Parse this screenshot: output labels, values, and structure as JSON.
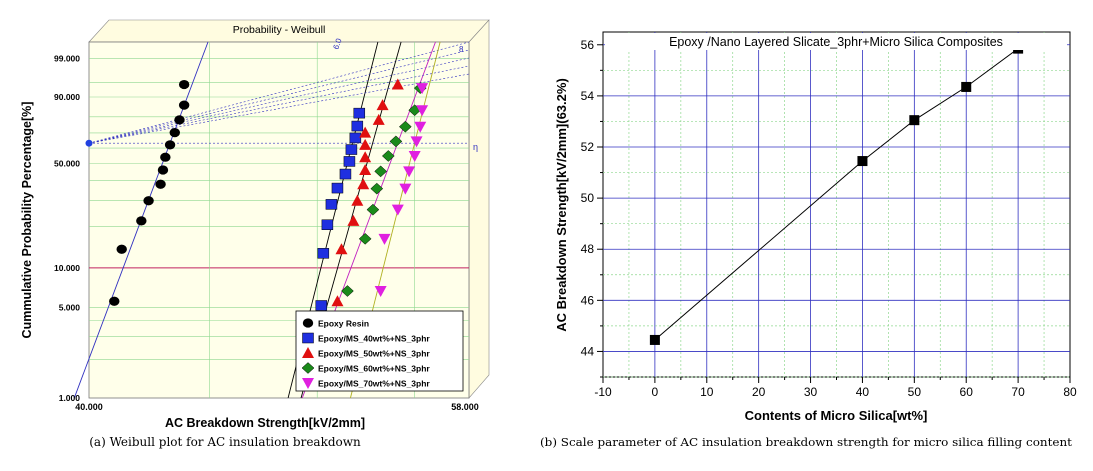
{
  "colors": {
    "epoxy_resin": "#000000",
    "ms40": "#1f2fe0",
    "ms50": "#e01010",
    "ms60": "#1a8a1a",
    "ms70": "#e020e0",
    "weibull_title": "#c01010",
    "grid_green": "#8fd88f",
    "grid_blue": "#3030c0",
    "plot_yellow_bg": "#ffffe6"
  },
  "chart_data": [
    {
      "type": "scatter",
      "title": "Probability - Weibull",
      "xlabel": "AC Breakdown Strength[kV/2mm]",
      "ylabel": "Cummulative Probability Percentage[%]",
      "xlim": [
        40.0,
        58.0
      ],
      "x_scale": "log",
      "y_scale": "weibull",
      "x_tick_labels": [
        "40.000",
        "58.000"
      ],
      "y_ticks": [
        1,
        5,
        10,
        50,
        90,
        99
      ],
      "y_tick_labels": [
        "1.000",
        "5.000",
        "10.000",
        "50.000",
        "90.000",
        "99.000"
      ],
      "annotations": [
        "6.0",
        "8",
        "η"
      ],
      "legend_position": "bottom-right",
      "series": [
        {
          "name": "Epoxy Resin",
          "marker": "circle",
          "x": [
            41.0,
            41.3,
            42.1,
            42.4,
            42.9,
            43.0,
            43.1,
            43.3,
            43.5,
            43.7,
            43.9,
            43.9
          ],
          "y": [
            5.6,
            13.7,
            21.8,
            29.8,
            37.9,
            46.0,
            54.0,
            62.1,
            70.2,
            78.2,
            86.3,
            94.4
          ]
        },
        {
          "name": "Epoxy/MS_40wt%+NS_3phr",
          "marker": "square",
          "x": [
            50.2,
            50.3,
            50.5,
            50.7,
            51.0,
            51.4,
            51.6,
            51.7,
            51.9,
            52.0,
            52.1
          ],
          "y": [
            5.2,
            12.8,
            20.5,
            28.2,
            35.9,
            43.6,
            51.3,
            59.0,
            66.7,
            74.4,
            82.1
          ]
        },
        {
          "name": "Epoxy/MS_50wt%+NS_3phr",
          "marker": "triangle-up",
          "x": [
            51.0,
            51.2,
            51.8,
            52.0,
            52.3,
            52.4,
            52.4,
            52.4,
            52.4,
            53.1,
            53.3,
            54.1
          ],
          "y": [
            5.6,
            13.7,
            21.8,
            29.8,
            37.9,
            46.0,
            54.0,
            62.1,
            70.2,
            78.2,
            86.3,
            94.4
          ]
        },
        {
          "name": "Epoxy/MS_60wt%+NS_3phr",
          "marker": "diamond",
          "x": [
            51.5,
            52.4,
            52.8,
            53.0,
            53.2,
            53.6,
            54.0,
            54.5,
            55.0,
            55.3
          ],
          "y": [
            6.7,
            16.3,
            26.0,
            35.6,
            45.2,
            54.8,
            64.4,
            74.0,
            83.7,
            93.3
          ]
        },
        {
          "name": "Epoxy/MS_70wt%+NS_3phr",
          "marker": "triangle-down",
          "x": [
            53.2,
            53.4,
            54.1,
            54.5,
            54.7,
            55.0,
            55.1,
            55.3,
            55.4,
            55.4
          ],
          "y": [
            6.7,
            16.3,
            26.0,
            35.6,
            45.2,
            54.8,
            64.4,
            74.0,
            83.7,
            93.3
          ]
        }
      ]
    },
    {
      "type": "line",
      "title": "Epoxy /Nano Layered Slicate_3phr+Micro Silica Composites",
      "xlabel": "Contents of Micro Silica[wt%]",
      "ylabel": "AC Breakdown Strength[kV/2mm](63.2%)",
      "xlim": [
        -10,
        80
      ],
      "ylim": [
        43,
        56.5
      ],
      "x_ticks": [
        -10,
        0,
        10,
        20,
        30,
        40,
        50,
        60,
        70,
        80
      ],
      "y_ticks": [
        44,
        46,
        48,
        50,
        52,
        54,
        56
      ],
      "grid": true,
      "series": [
        {
          "x": [
            0,
            40,
            50,
            60,
            70
          ],
          "values": [
            44.45,
            51.45,
            53.05,
            54.35,
            55.85
          ]
        }
      ]
    }
  ],
  "captions": {
    "left": "(a) Weibull plot for AC insulation breakdown",
    "right": "(b) Scale parameter of AC insulation breakdown strength for micro silica filling content"
  }
}
